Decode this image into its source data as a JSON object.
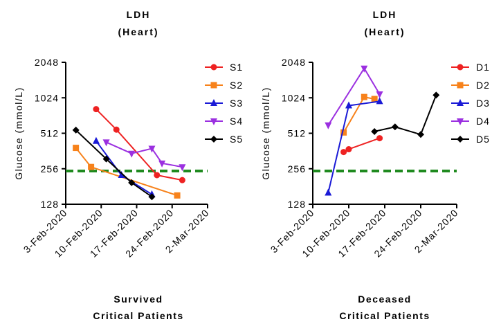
{
  "chart_data": [
    {
      "type": "line",
      "title": "LDH",
      "subtitle": "(Heart)",
      "ylabel": "Glucose (mmol/L)",
      "xlabel": "Survived",
      "xlabel2": "Critical Patients",
      "y_scale": "log2",
      "ylim": [
        128,
        2048
      ],
      "y_ticks": [
        128,
        256,
        512,
        1024,
        2048
      ],
      "y_tick_labels": [
        "128",
        "256",
        "512",
        "1024",
        "2048"
      ],
      "xlim": [
        "2020-02-03",
        "2020-03-02"
      ],
      "x_ticks": [
        "2020-02-03",
        "2020-02-10",
        "2020-02-17",
        "2020-02-24",
        "2020-03-02"
      ],
      "x_tick_labels": [
        "3-Feb-2020",
        "10-Feb-2020",
        "17-Feb-2020",
        "24-Feb-2020",
        "2-Mar-2020"
      ],
      "reference_line": {
        "y": 245,
        "color": "#1f8a1f",
        "style": "dashed"
      },
      "legend_position": "right",
      "series": [
        {
          "name": "S1",
          "color": "#ee2222",
          "marker": "circle",
          "points": [
            [
              "2020-02-09",
              820
            ],
            [
              "2020-02-13",
              550
            ],
            [
              "2020-02-21",
              226
            ],
            [
              "2020-02-26",
              205
            ]
          ]
        },
        {
          "name": "S2",
          "color": "#f7821b",
          "marker": "square",
          "points": [
            [
              "2020-02-05",
              385
            ],
            [
              "2020-02-08",
              265
            ],
            [
              "2020-02-25",
              152
            ]
          ]
        },
        {
          "name": "S3",
          "color": "#1a1ad6",
          "marker": "triangle-up",
          "points": [
            [
              "2020-02-09",
              440
            ],
            [
              "2020-02-14",
              226
            ],
            [
              "2020-02-20",
              155
            ]
          ]
        },
        {
          "name": "S4",
          "color": "#9b30e0",
          "marker": "triangle-down",
          "points": [
            [
              "2020-02-11",
              430
            ],
            [
              "2020-02-16",
              345
            ],
            [
              "2020-02-20",
              380
            ],
            [
              "2020-02-22",
              285
            ],
            [
              "2020-02-26",
              265
            ]
          ]
        },
        {
          "name": "S5",
          "color": "#000000",
          "marker": "diamond",
          "points": [
            [
              "2020-02-05",
              545
            ],
            [
              "2020-02-11",
              310
            ],
            [
              "2020-02-16",
              195
            ],
            [
              "2020-02-20",
              148
            ]
          ]
        }
      ]
    },
    {
      "type": "line",
      "title": "LDH",
      "subtitle": "(Heart)",
      "ylabel": "Glucose (mmol/L)",
      "xlabel": "Deceased",
      "xlabel2": "Critical Patients",
      "y_scale": "log2",
      "ylim": [
        128,
        2048
      ],
      "y_ticks": [
        128,
        256,
        512,
        1024,
        2048
      ],
      "y_tick_labels": [
        "128",
        "256",
        "512",
        "1024",
        "2048"
      ],
      "xlim": [
        "2020-02-03",
        "2020-03-02"
      ],
      "x_ticks": [
        "2020-02-03",
        "2020-02-10",
        "2020-02-17",
        "2020-02-24",
        "2020-03-02"
      ],
      "x_tick_labels": [
        "3-Feb-2020",
        "10-Feb-2020",
        "17-Feb-2020",
        "24-Feb-2020",
        "2-Mar-2020"
      ],
      "reference_line": {
        "y": 245,
        "color": "#1f8a1f",
        "style": "dashed"
      },
      "legend_position": "right",
      "series": [
        {
          "name": "D1",
          "color": "#ee2222",
          "marker": "circle",
          "points": [
            [
              "2020-02-09",
              355
            ],
            [
              "2020-02-10",
              375
            ],
            [
              "2020-02-16",
              465
            ]
          ]
        },
        {
          "name": "D2",
          "color": "#f7821b",
          "marker": "square",
          "points": [
            [
              "2020-02-09",
              520
            ],
            [
              "2020-02-13",
              1040
            ],
            [
              "2020-02-15",
              1000
            ]
          ]
        },
        {
          "name": "D3",
          "color": "#1a1ad6",
          "marker": "triangle-up",
          "points": [
            [
              "2020-02-06",
              160
            ],
            [
              "2020-02-10",
              880
            ],
            [
              "2020-02-16",
              955
            ]
          ]
        },
        {
          "name": "D4",
          "color": "#9b30e0",
          "marker": "triangle-down",
          "points": [
            [
              "2020-02-06",
              600
            ],
            [
              "2020-02-13",
              1820
            ],
            [
              "2020-02-16",
              1100
            ]
          ]
        },
        {
          "name": "D5",
          "color": "#000000",
          "marker": "diamond",
          "points": [
            [
              "2020-02-15",
              530
            ],
            [
              "2020-02-19",
              580
            ],
            [
              "2020-02-24",
              500
            ],
            [
              "2020-02-27",
              1080
            ]
          ]
        }
      ]
    }
  ]
}
